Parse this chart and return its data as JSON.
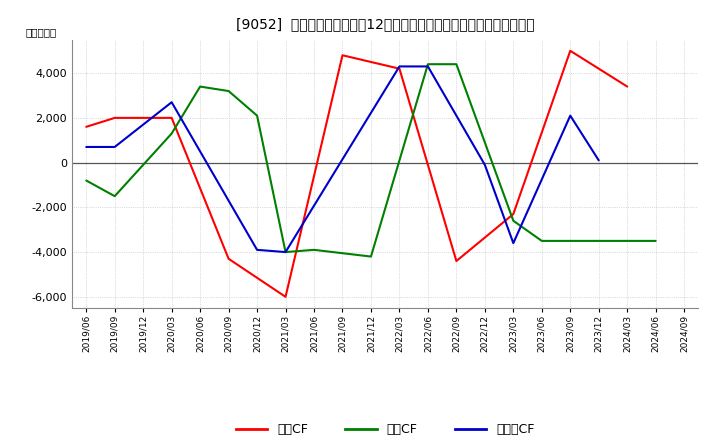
{
  "title": "[9052]  キャッシュフローの12か月移動合計の対前年同期増減額の推移",
  "ylabel": "（百万円）",
  "x_labels": [
    "2019/06",
    "2019/09",
    "2019/12",
    "2020/03",
    "2020/06",
    "2020/09",
    "2020/12",
    "2021/03",
    "2021/06",
    "2021/09",
    "2021/12",
    "2022/03",
    "2022/06",
    "2022/09",
    "2022/12",
    "2023/03",
    "2023/06",
    "2023/09",
    "2023/12",
    "2024/03",
    "2024/06",
    "2024/09"
  ],
  "operating_color": "#ff0000",
  "investing_color": "#008000",
  "free_color": "#0000cc",
  "ylim": [
    -6500,
    5500
  ],
  "yticks": [
    -6000,
    -4000,
    -2000,
    0,
    2000,
    4000
  ],
  "operating_cf_keys": [
    "2019/06",
    "2019/09",
    "2019/12",
    "2020/03",
    "2020/09",
    "2021/03",
    "2021/09",
    "2022/03",
    "2022/09",
    "2023/03",
    "2023/09",
    "2024/03"
  ],
  "operating_cf_vals": [
    1600,
    2000,
    2000,
    2000,
    -4300,
    -6000,
    4800,
    4200,
    -4400,
    -2300,
    5000,
    3400
  ],
  "investing_cf_keys": [
    "2019/06",
    "2019/09",
    "2020/03",
    "2020/06",
    "2020/09",
    "2020/12",
    "2021/03",
    "2021/06",
    "2021/12",
    "2022/06",
    "2022/09",
    "2023/03",
    "2023/06",
    "2024/03",
    "2024/06"
  ],
  "investing_cf_vals": [
    -800,
    -1500,
    1300,
    3400,
    3200,
    2100,
    -4000,
    -3900,
    -4200,
    4400,
    4400,
    -2600,
    -3500,
    -3500,
    -3500
  ],
  "free_cf_keys": [
    "2019/06",
    "2019/09",
    "2019/12",
    "2020/03",
    "2020/12",
    "2021/03",
    "2022/03",
    "2022/06",
    "2022/12",
    "2023/03",
    "2023/09",
    "2023/12"
  ],
  "free_cf_vals": [
    700,
    700,
    1700,
    2700,
    -3900,
    -4000,
    4300,
    4300,
    -100,
    -3600,
    2100,
    100
  ],
  "legend_labels": [
    "営業CF",
    "投資CF",
    "フリーCF"
  ]
}
